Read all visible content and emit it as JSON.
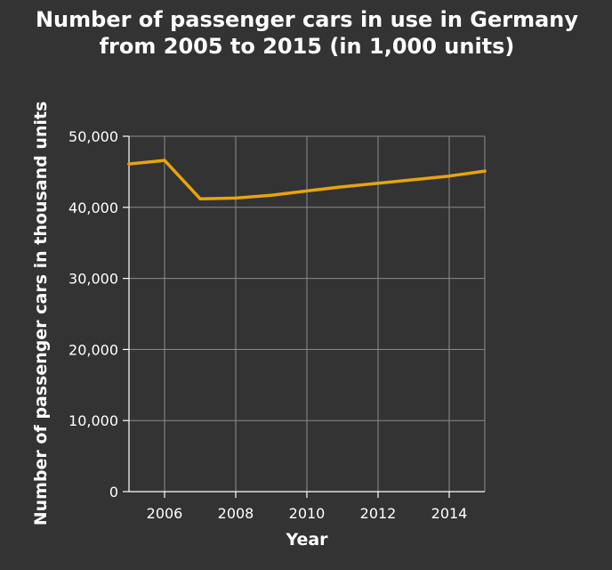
{
  "chart_data": {
    "type": "line",
    "title_lines": [
      "Number of passenger cars in use in Germany",
      "from 2005 to 2015 (in 1,000 units)"
    ],
    "xlabel": "Year",
    "ylabel": "Number of passenger cars in thousand units",
    "xlim": [
      2005,
      2015
    ],
    "ylim": [
      0,
      50000
    ],
    "x_ticks": [
      2006,
      2008,
      2010,
      2012,
      2014
    ],
    "x_tick_labels": [
      "2006",
      "2008",
      "2010",
      "2012",
      "2014"
    ],
    "y_ticks": [
      0,
      10000,
      20000,
      30000,
      40000,
      50000
    ],
    "y_tick_labels": [
      "0",
      "10,000",
      "20,000",
      "30,000",
      "40,000",
      "50,000"
    ],
    "grid": true,
    "series": [
      {
        "color": "#e6a50e",
        "x": [
          2005,
          2006,
          2007,
          2008,
          2009,
          2010,
          2011,
          2012,
          2013,
          2014,
          2015
        ],
        "values": [
          46100,
          46600,
          41200,
          41300,
          41700,
          42300,
          42900,
          43400,
          43900,
          44400,
          45100
        ]
      }
    ]
  },
  "colors": {
    "background": "#333333",
    "text": "#ffffff",
    "grid": "#8c8c8c",
    "line": "#e6a50e"
  }
}
